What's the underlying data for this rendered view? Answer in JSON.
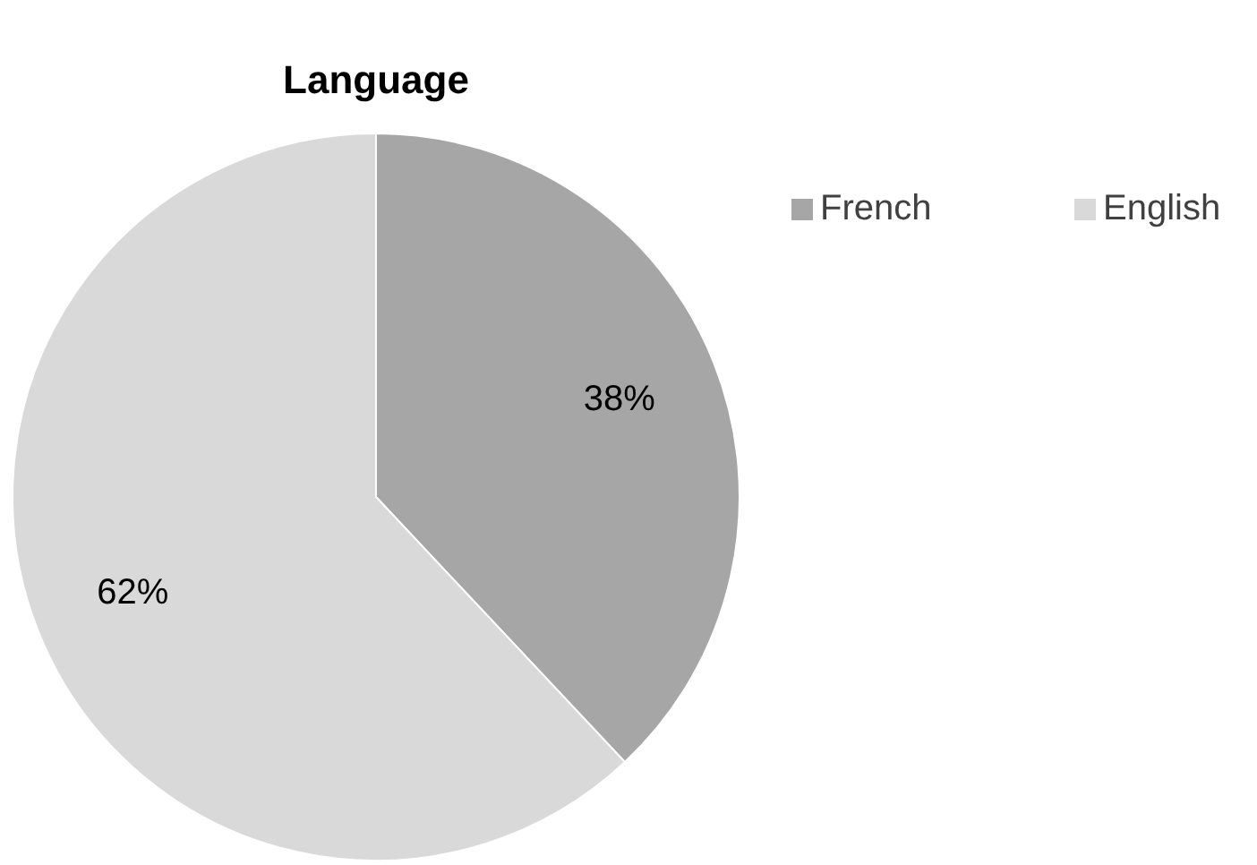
{
  "chart_data": {
    "type": "pie",
    "title": "Language",
    "categories": [
      "French",
      "English"
    ],
    "values": [
      38,
      62
    ],
    "value_labels": [
      "38%",
      "62%"
    ],
    "colors": [
      "#a6a6a6",
      "#d9d9d9"
    ],
    "legend": "top right"
  }
}
